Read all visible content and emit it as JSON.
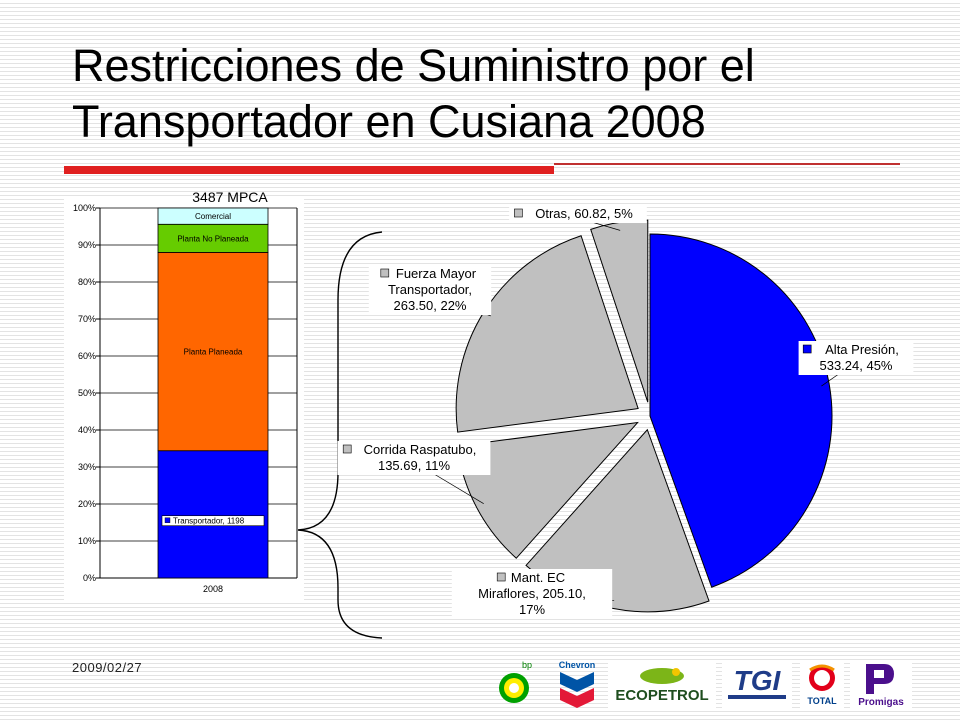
{
  "slide": {
    "title_line1": "Restricciones de Suministro por el",
    "title_line2": "Transportador en Cusiana 2008",
    "date": "2009/02/27",
    "accent_color": "#e02020"
  },
  "chart_data": [
    {
      "type": "bar",
      "stacked": true,
      "percent": true,
      "annotation": "3487 MPCA",
      "categories": [
        "2008"
      ],
      "ylim": [
        0,
        100
      ],
      "yticks": [
        "0%",
        "10%",
        "20%",
        "30%",
        "40%",
        "50%",
        "60%",
        "70%",
        "80%",
        "90%",
        "100%"
      ],
      "series": [
        {
          "name": "Transportador, 1198",
          "values": [
            34.4
          ],
          "color": "#0000ff"
        },
        {
          "name": "Planta Planeada",
          "values": [
            53.6
          ],
          "color": "#ff6600"
        },
        {
          "name": "Planta No Planeada",
          "values": [
            7.6
          ],
          "color": "#66cc00"
        },
        {
          "name": "Comercial",
          "values": [
            4.4
          ],
          "color": "#ccffff"
        }
      ]
    },
    {
      "type": "pie",
      "slices": [
        {
          "label_lines": [
            "Alta Presión,",
            "533.24, 45%"
          ],
          "value": 533.24,
          "percent": 45,
          "color": "#0000ff",
          "exploded": false
        },
        {
          "label_lines": [
            "Mant. EC",
            "Miraflores, 205.10,",
            "17%"
          ],
          "value": 205.1,
          "percent": 17,
          "color": "#c0c0c0",
          "exploded": true
        },
        {
          "label_lines": [
            "Corrida Raspatubo,",
            "135.69, 11%"
          ],
          "value": 135.69,
          "percent": 11,
          "color": "#c0c0c0",
          "exploded": true
        },
        {
          "label_lines": [
            "Fuerza Mayor",
            "Transportador,",
            "263.50, 22%"
          ],
          "value": 263.5,
          "percent": 22,
          "color": "#c0c0c0",
          "exploded": true
        },
        {
          "label_lines": [
            "Otras, 60.82, 5%"
          ],
          "value": 60.82,
          "percent": 5,
          "color": "#c0c0c0",
          "exploded": true
        }
      ]
    }
  ],
  "logos": [
    {
      "icon": "bp-logo",
      "text": "bp"
    },
    {
      "icon": "chevron-logo",
      "text": "Chevron"
    },
    {
      "icon": "ecopetrol-logo",
      "text": "ECOPETROL"
    },
    {
      "icon": "tgi-logo",
      "text": "TGI"
    },
    {
      "icon": "total-logo",
      "text": "TOTAL"
    },
    {
      "icon": "promigas-logo",
      "text": "Promigas"
    }
  ]
}
